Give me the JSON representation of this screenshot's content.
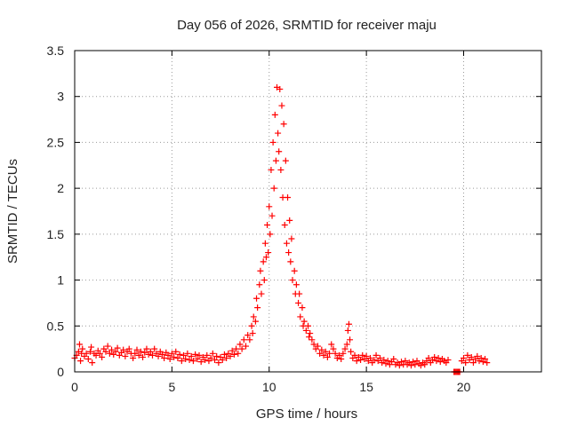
{
  "chart_data": {
    "type": "scatter",
    "title": "Day 056 of 2026, SRMTID for receiver maju",
    "xlabel": "GPS time / hours",
    "ylabel": "SRMTID / TECUs",
    "xlim": [
      0,
      24
    ],
    "ylim": [
      0,
      3.5
    ],
    "xticks": [
      0,
      5,
      10,
      15,
      20
    ],
    "yticks": [
      0,
      0.5,
      1,
      1.5,
      2,
      2.5,
      3,
      3.5
    ],
    "x_tick_labels": [
      "0",
      "5",
      "10",
      "15",
      "20"
    ],
    "y_tick_labels": [
      "0",
      "0.5",
      "1",
      "1.5",
      "2",
      "2.5",
      "3",
      "3.5"
    ],
    "grid": true,
    "marker": "plus",
    "series": [
      {
        "name": "SRMTID",
        "color": "#ff0000",
        "points": [
          [
            0.0,
            0.15
          ],
          [
            0.1,
            0.18
          ],
          [
            0.2,
            0.22
          ],
          [
            0.25,
            0.3
          ],
          [
            0.3,
            0.12
          ],
          [
            0.35,
            0.2
          ],
          [
            0.4,
            0.25
          ],
          [
            0.5,
            0.17
          ],
          [
            0.6,
            0.2
          ],
          [
            0.7,
            0.14
          ],
          [
            0.8,
            0.22
          ],
          [
            0.85,
            0.27
          ],
          [
            0.9,
            0.1
          ],
          [
            1.0,
            0.2
          ],
          [
            1.1,
            0.18
          ],
          [
            1.2,
            0.23
          ],
          [
            1.3,
            0.2
          ],
          [
            1.4,
            0.16
          ],
          [
            1.5,
            0.25
          ],
          [
            1.6,
            0.22
          ],
          [
            1.7,
            0.28
          ],
          [
            1.8,
            0.2
          ],
          [
            1.9,
            0.24
          ],
          [
            2.0,
            0.19
          ],
          [
            2.1,
            0.22
          ],
          [
            2.2,
            0.26
          ],
          [
            2.3,
            0.18
          ],
          [
            2.4,
            0.21
          ],
          [
            2.5,
            0.24
          ],
          [
            2.6,
            0.17
          ],
          [
            2.7,
            0.22
          ],
          [
            2.8,
            0.25
          ],
          [
            2.9,
            0.2
          ],
          [
            3.0,
            0.15
          ],
          [
            3.1,
            0.2
          ],
          [
            3.2,
            0.24
          ],
          [
            3.3,
            0.18
          ],
          [
            3.4,
            0.22
          ],
          [
            3.5,
            0.16
          ],
          [
            3.6,
            0.21
          ],
          [
            3.7,
            0.25
          ],
          [
            3.8,
            0.19
          ],
          [
            3.9,
            0.22
          ],
          [
            4.0,
            0.18
          ],
          [
            4.1,
            0.25
          ],
          [
            4.2,
            0.2
          ],
          [
            4.3,
            0.17
          ],
          [
            4.4,
            0.22
          ],
          [
            4.5,
            0.19
          ],
          [
            4.6,
            0.15
          ],
          [
            4.7,
            0.21
          ],
          [
            4.8,
            0.18
          ],
          [
            4.9,
            0.14
          ],
          [
            5.0,
            0.2
          ],
          [
            5.1,
            0.16
          ],
          [
            5.2,
            0.22
          ],
          [
            5.3,
            0.15
          ],
          [
            5.4,
            0.19
          ],
          [
            5.5,
            0.12
          ],
          [
            5.6,
            0.18
          ],
          [
            5.7,
            0.14
          ],
          [
            5.8,
            0.2
          ],
          [
            5.9,
            0.13
          ],
          [
            6.0,
            0.17
          ],
          [
            6.1,
            0.12
          ],
          [
            6.2,
            0.19
          ],
          [
            6.3,
            0.14
          ],
          [
            6.4,
            0.18
          ],
          [
            6.5,
            0.11
          ],
          [
            6.6,
            0.16
          ],
          [
            6.7,
            0.13
          ],
          [
            6.8,
            0.18
          ],
          [
            6.9,
            0.12
          ],
          [
            7.0,
            0.15
          ],
          [
            7.1,
            0.2
          ],
          [
            7.2,
            0.13
          ],
          [
            7.3,
            0.17
          ],
          [
            7.4,
            0.1
          ],
          [
            7.5,
            0.16
          ],
          [
            7.6,
            0.13
          ],
          [
            7.7,
            0.19
          ],
          [
            7.8,
            0.15
          ],
          [
            7.9,
            0.2
          ],
          [
            8.0,
            0.17
          ],
          [
            8.1,
            0.23
          ],
          [
            8.2,
            0.19
          ],
          [
            8.3,
            0.25
          ],
          [
            8.4,
            0.2
          ],
          [
            8.5,
            0.3
          ],
          [
            8.6,
            0.25
          ],
          [
            8.7,
            0.35
          ],
          [
            8.8,
            0.28
          ],
          [
            8.9,
            0.4
          ],
          [
            9.0,
            0.35
          ],
          [
            9.1,
            0.5
          ],
          [
            9.15,
            0.42
          ],
          [
            9.2,
            0.6
          ],
          [
            9.3,
            0.55
          ],
          [
            9.35,
            0.8
          ],
          [
            9.4,
            0.7
          ],
          [
            9.5,
            0.95
          ],
          [
            9.55,
            1.1
          ],
          [
            9.6,
            0.85
          ],
          [
            9.7,
            1.2
          ],
          [
            9.75,
            1.0
          ],
          [
            9.8,
            1.4
          ],
          [
            9.85,
            1.25
          ],
          [
            9.9,
            1.6
          ],
          [
            9.95,
            1.3
          ],
          [
            10.0,
            1.8
          ],
          [
            10.05,
            1.5
          ],
          [
            10.1,
            2.2
          ],
          [
            10.15,
            1.7
          ],
          [
            10.2,
            2.5
          ],
          [
            10.25,
            2.0
          ],
          [
            10.3,
            2.8
          ],
          [
            10.35,
            2.3
          ],
          [
            10.4,
            3.1
          ],
          [
            10.45,
            2.6
          ],
          [
            10.5,
            2.4
          ],
          [
            10.55,
            3.08
          ],
          [
            10.6,
            2.2
          ],
          [
            10.65,
            2.9
          ],
          [
            10.7,
            1.9
          ],
          [
            10.75,
            2.7
          ],
          [
            10.8,
            1.6
          ],
          [
            10.85,
            2.3
          ],
          [
            10.9,
            1.4
          ],
          [
            10.95,
            1.9
          ],
          [
            11.0,
            1.3
          ],
          [
            11.05,
            1.65
          ],
          [
            11.1,
            1.2
          ],
          [
            11.15,
            1.45
          ],
          [
            11.2,
            1.0
          ],
          [
            11.3,
            1.1
          ],
          [
            11.35,
            0.85
          ],
          [
            11.4,
            0.95
          ],
          [
            11.5,
            0.75
          ],
          [
            11.55,
            0.85
          ],
          [
            11.6,
            0.6
          ],
          [
            11.7,
            0.7
          ],
          [
            11.75,
            0.5
          ],
          [
            11.8,
            0.55
          ],
          [
            11.9,
            0.45
          ],
          [
            12.0,
            0.5
          ],
          [
            12.05,
            0.38
          ],
          [
            12.1,
            0.42
          ],
          [
            12.2,
            0.35
          ],
          [
            12.3,
            0.3
          ],
          [
            12.4,
            0.25
          ],
          [
            12.5,
            0.28
          ],
          [
            12.6,
            0.2
          ],
          [
            12.7,
            0.24
          ],
          [
            12.8,
            0.18
          ],
          [
            12.9,
            0.22
          ],
          [
            13.0,
            0.16
          ],
          [
            13.1,
            0.2
          ],
          [
            13.2,
            0.3
          ],
          [
            13.3,
            0.25
          ],
          [
            13.4,
            0.2
          ],
          [
            13.5,
            0.15
          ],
          [
            13.6,
            0.18
          ],
          [
            13.7,
            0.14
          ],
          [
            13.8,
            0.2
          ],
          [
            13.9,
            0.25
          ],
          [
            14.0,
            0.3
          ],
          [
            14.05,
            0.45
          ],
          [
            14.1,
            0.52
          ],
          [
            14.15,
            0.35
          ],
          [
            14.2,
            0.22
          ],
          [
            14.3,
            0.15
          ],
          [
            14.4,
            0.18
          ],
          [
            14.5,
            0.12
          ],
          [
            14.6,
            0.16
          ],
          [
            14.7,
            0.13
          ],
          [
            14.8,
            0.18
          ],
          [
            14.9,
            0.14
          ],
          [
            15.0,
            0.17
          ],
          [
            15.1,
            0.12
          ],
          [
            15.2,
            0.15
          ],
          [
            15.3,
            0.1
          ],
          [
            15.4,
            0.13
          ],
          [
            15.5,
            0.18
          ],
          [
            15.6,
            0.12
          ],
          [
            15.7,
            0.15
          ],
          [
            15.8,
            0.1
          ],
          [
            15.9,
            0.13
          ],
          [
            16.0,
            0.09
          ],
          [
            16.1,
            0.12
          ],
          [
            16.2,
            0.08
          ],
          [
            16.3,
            0.11
          ],
          [
            16.4,
            0.14
          ],
          [
            16.5,
            0.08
          ],
          [
            16.6,
            0.1
          ],
          [
            16.7,
            0.07
          ],
          [
            16.8,
            0.11
          ],
          [
            16.9,
            0.08
          ],
          [
            17.0,
            0.12
          ],
          [
            17.1,
            0.08
          ],
          [
            17.2,
            0.1
          ],
          [
            17.3,
            0.07
          ],
          [
            17.4,
            0.11
          ],
          [
            17.5,
            0.08
          ],
          [
            17.6,
            0.12
          ],
          [
            17.7,
            0.09
          ],
          [
            17.8,
            0.07
          ],
          [
            17.9,
            0.1
          ],
          [
            18.0,
            0.08
          ],
          [
            18.1,
            0.12
          ],
          [
            18.2,
            0.15
          ],
          [
            18.3,
            0.1
          ],
          [
            18.4,
            0.13
          ],
          [
            18.5,
            0.16
          ],
          [
            18.6,
            0.12
          ],
          [
            18.7,
            0.15
          ],
          [
            18.8,
            0.11
          ],
          [
            18.9,
            0.14
          ],
          [
            19.0,
            0.12
          ],
          [
            19.1,
            0.1
          ],
          [
            19.2,
            0.13
          ],
          [
            19.5,
            0.0
          ],
          [
            19.55,
            0.0
          ],
          [
            19.6,
            0.0
          ],
          [
            19.65,
            0.0
          ],
          [
            19.7,
            0.0
          ],
          [
            19.75,
            0.0
          ],
          [
            19.8,
            0.0
          ],
          [
            19.9,
            0.12
          ],
          [
            20.0,
            0.15
          ],
          [
            20.1,
            0.1
          ],
          [
            20.2,
            0.18
          ],
          [
            20.3,
            0.13
          ],
          [
            20.4,
            0.16
          ],
          [
            20.5,
            0.1
          ],
          [
            20.6,
            0.14
          ],
          [
            20.7,
            0.17
          ],
          [
            20.8,
            0.12
          ],
          [
            20.9,
            0.15
          ],
          [
            21.0,
            0.11
          ],
          [
            21.1,
            0.14
          ],
          [
            21.2,
            0.1
          ]
        ]
      }
    ]
  }
}
